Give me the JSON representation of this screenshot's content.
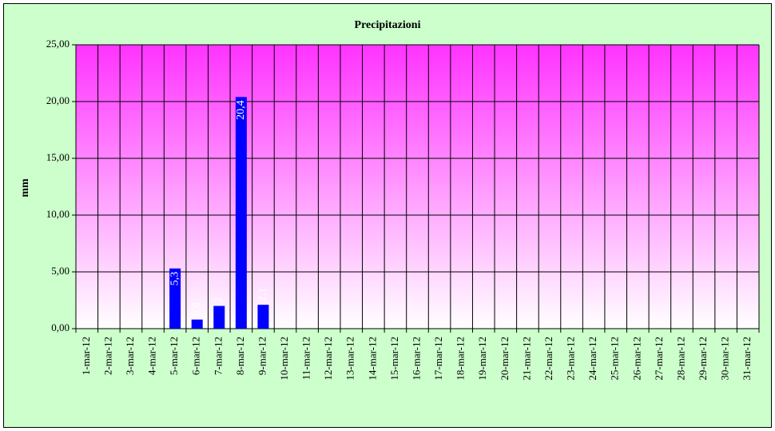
{
  "chart_data": {
    "type": "bar",
    "title": "Precipitazioni",
    "y_label": "mm",
    "categories": [
      "1-mar-12",
      "2-mar-12",
      "3-mar-12",
      "4-mar-12",
      "5-mar-12",
      "6-mar-12",
      "7-mar-12",
      "8-mar-12",
      "9-mar-12",
      "10-mar-12",
      "11-mar-12",
      "12-mar-12",
      "13-mar-12",
      "14-mar-12",
      "15-mar-12",
      "16-mar-12",
      "17-mar-12",
      "18-mar-12",
      "19-mar-12",
      "20-mar-12",
      "21-mar-12",
      "22-mar-12",
      "23-mar-12",
      "24-mar-12",
      "25-mar-12",
      "26-mar-12",
      "27-mar-12",
      "28-mar-12",
      "29-mar-12",
      "30-mar-12",
      "31-mar-12"
    ],
    "values": [
      null,
      null,
      null,
      null,
      5.3,
      0.8,
      2,
      20.4,
      2.1,
      null,
      null,
      null,
      null,
      null,
      null,
      null,
      null,
      null,
      null,
      null,
      null,
      null,
      null,
      null,
      null,
      null,
      null,
      null,
      null,
      null,
      null
    ],
    "value_labels": [
      null,
      null,
      null,
      null,
      "5,3",
      "0,8",
      "2",
      "20,4",
      "2,1",
      null,
      null,
      null,
      null,
      null,
      null,
      null,
      null,
      null,
      null,
      null,
      null,
      null,
      null,
      null,
      null,
      null,
      null,
      null,
      null,
      null,
      null
    ],
    "color": "#0000ff",
    "ylim": [
      0,
      25
    ],
    "yticks": [
      {
        "value": 0,
        "label": "0,00"
      },
      {
        "value": 5,
        "label": "5,00"
      },
      {
        "value": 10,
        "label": "10,00"
      },
      {
        "value": 15,
        "label": "15,00"
      },
      {
        "value": 20,
        "label": "20,00"
      },
      {
        "value": 25,
        "label": "25,00"
      }
    ],
    "grid": true
  }
}
